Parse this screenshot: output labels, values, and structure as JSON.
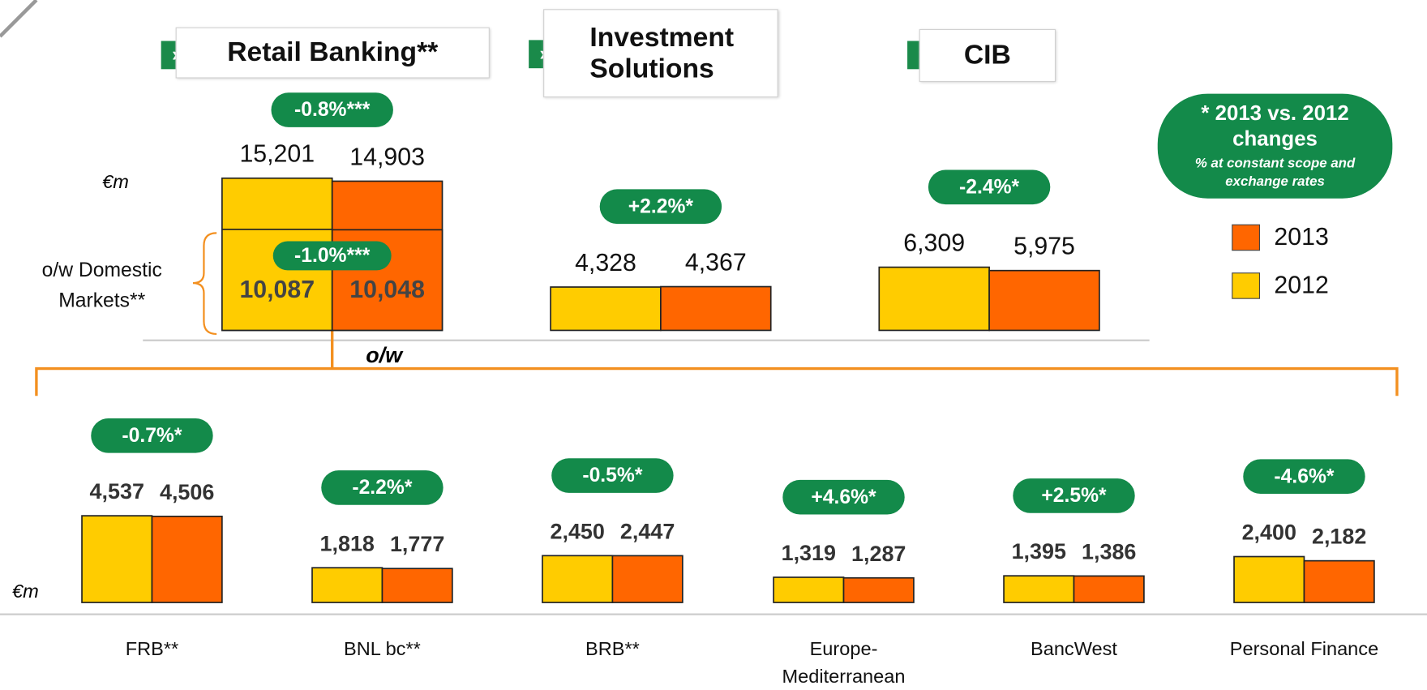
{
  "chart_data": [
    {
      "type": "bar",
      "unit": "€m",
      "categories": [
        "Retail Banking**",
        "Investment Solutions",
        "CIB"
      ],
      "series": [
        {
          "name": "2012",
          "color": "#ffcc00",
          "values": [
            15201,
            4328,
            6309
          ],
          "value_labels": [
            "15,201",
            "4,328",
            "6,309"
          ]
        },
        {
          "name": "2013",
          "color": "#ff6600",
          "values": [
            14903,
            4367,
            5975
          ],
          "value_labels": [
            "14,903",
            "4,367",
            "5,975"
          ]
        }
      ],
      "changes": [
        "-0.8%***",
        "+2.2%*",
        "-2.4%*"
      ],
      "ylim": [
        0,
        16000
      ],
      "subset": {
        "label": "o/w Domestic Markets**",
        "values": [
          10087,
          10048
        ],
        "value_labels": [
          "10,087",
          "10,048"
        ],
        "change": "-1.0%***"
      }
    },
    {
      "type": "bar",
      "unit": "€m",
      "label": "o/w",
      "categories": [
        "FRB**",
        "BNL bc**",
        "BRB**",
        "Europe-Mediterranean",
        "BancWest",
        "Personal Finance"
      ],
      "series": [
        {
          "name": "2012",
          "color": "#ffcc00",
          "values": [
            4537,
            1818,
            2450,
            1319,
            1395,
            2400
          ],
          "value_labels": [
            "4,537",
            "1,818",
            "2,450",
            "1,319",
            "1,395",
            "2,400"
          ]
        },
        {
          "name": "2013",
          "color": "#ff6600",
          "values": [
            4506,
            1777,
            2447,
            1287,
            1386,
            2182
          ],
          "value_labels": [
            "4,506",
            "1,777",
            "2,447",
            "1,287",
            "1,386",
            "2,182"
          ]
        }
      ],
      "changes": [
        "-0.7%*",
        "-2.2%*",
        "-0.5%*",
        "+4.6%*",
        "+2.5%*",
        "-4.6%*"
      ],
      "ylim": [
        0,
        5000
      ]
    }
  ],
  "legend_note": {
    "title": "* 2013 vs. 2012 changes",
    "subtitle": "% at constant scope and exchange rates"
  }
}
